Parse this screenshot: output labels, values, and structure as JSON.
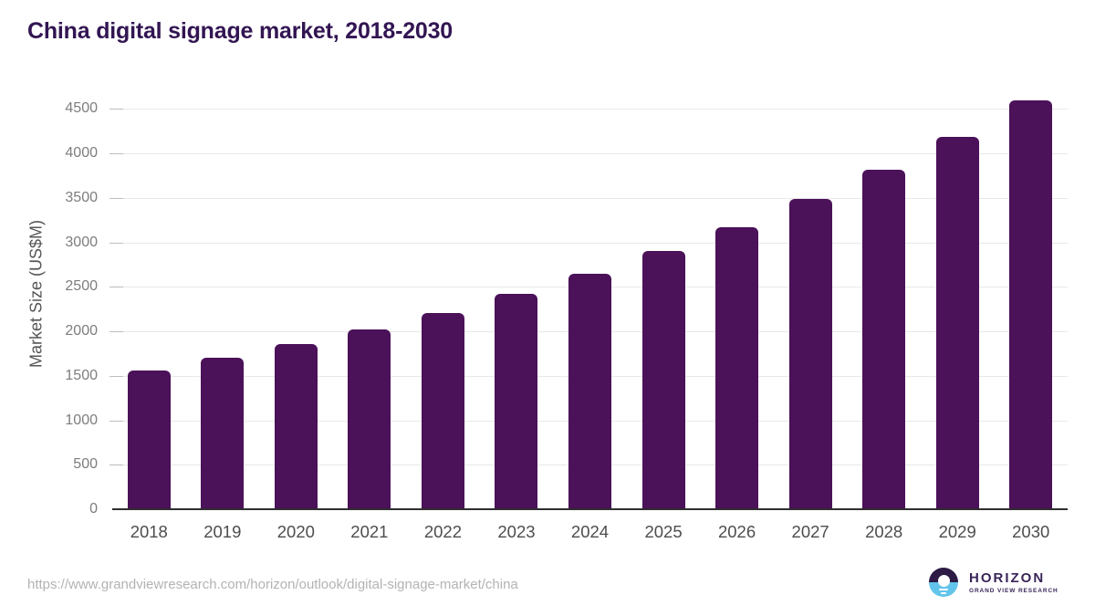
{
  "header": {
    "title": "China digital signage market, 2018-2030"
  },
  "chart_data": {
    "type": "bar",
    "title": "China digital signage market, 2018-2030",
    "categories": [
      "2018",
      "2019",
      "2020",
      "2021",
      "2022",
      "2023",
      "2024",
      "2025",
      "2026",
      "2027",
      "2028",
      "2029",
      "2030"
    ],
    "values": [
      1550,
      1695,
      1850,
      2015,
      2200,
      2410,
      2635,
      2895,
      3165,
      3475,
      3805,
      4180,
      4590
    ],
    "xlabel": "",
    "ylabel": "Market Size (US$M)",
    "ylim": [
      0,
      4700
    ],
    "yticks": [
      0,
      500,
      1000,
      1500,
      2000,
      2500,
      3000,
      3500,
      4000,
      4500
    ],
    "grid": "horizontal",
    "legend": false,
    "bar_color": "#4b1159"
  },
  "footer": {
    "source_url": "https://www.grandviewresearch.com/horizon/outlook/digital-signage-market/china",
    "logo": {
      "brand": "HORIZON",
      "tagline": "GRAND VIEW RESEARCH"
    }
  },
  "colors": {
    "title_text": "#321552",
    "bar": "#4b1159",
    "gridline": "#e8e8e8",
    "axis_line": "#2f2f2f",
    "tick_mark": "#bdbdbd",
    "y_tick_text": "#7d7d7d",
    "x_tick_text": "#4d4d4d",
    "axis_title_text": "#555555",
    "url_text": "#b3b3b3",
    "logo_dark_half": "#2d1a45",
    "logo_blue_half": "#62c4ea",
    "logo_text": "#3a2559"
  }
}
